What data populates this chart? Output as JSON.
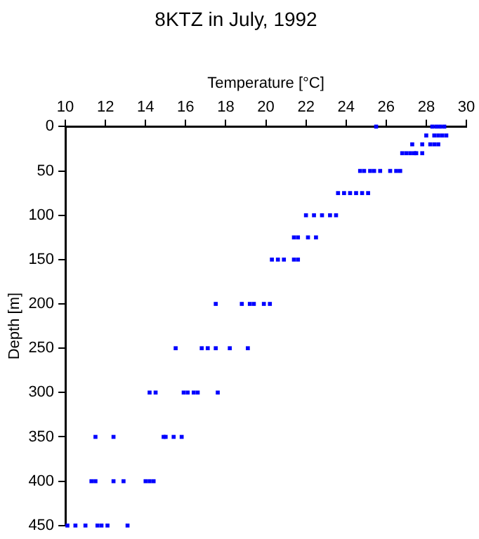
{
  "chart_data": {
    "type": "scatter",
    "title": "8KTZ in July, 1992",
    "xlabel": "Temperature [°C]",
    "ylabel": "Depth [m]",
    "x": [
      25.5,
      28.3,
      28.5,
      28.7,
      28.9,
      28.0,
      28.4,
      28.6,
      28.8,
      29.0,
      27.3,
      27.8,
      28.2,
      28.4,
      28.6,
      26.8,
      27.0,
      27.2,
      27.4,
      27.5,
      27.8,
      24.7,
      24.9,
      25.2,
      25.4,
      25.7,
      26.2,
      26.5,
      26.7,
      23.6,
      23.9,
      24.2,
      24.5,
      24.8,
      25.1,
      22.0,
      22.4,
      22.8,
      23.2,
      23.5,
      21.4,
      21.6,
      22.1,
      22.5,
      20.3,
      20.6,
      20.9,
      21.4,
      21.6,
      17.5,
      18.8,
      19.2,
      19.4,
      19.9,
      20.2,
      15.5,
      16.8,
      17.1,
      17.5,
      18.2,
      19.1,
      14.2,
      14.5,
      15.9,
      16.1,
      16.4,
      16.6,
      17.6,
      11.5,
      12.4,
      14.9,
      15.0,
      15.4,
      15.8,
      11.3,
      11.5,
      12.4,
      12.9,
      14.0,
      14.2,
      14.4,
      10.1,
      10.5,
      11.0,
      11.6,
      11.8,
      12.1,
      13.1
    ],
    "values": [
      0,
      0,
      0,
      0,
      0,
      10,
      10,
      10,
      10,
      10,
      20,
      20,
      20,
      20,
      20,
      30,
      30,
      30,
      30,
      30,
      30,
      50,
      50,
      50,
      50,
      50,
      50,
      50,
      50,
      75,
      75,
      75,
      75,
      75,
      75,
      100,
      100,
      100,
      100,
      100,
      125,
      125,
      125,
      125,
      150,
      150,
      150,
      150,
      150,
      200,
      200,
      200,
      200,
      200,
      200,
      250,
      250,
      250,
      250,
      250,
      250,
      300,
      300,
      300,
      300,
      300,
      300,
      300,
      350,
      350,
      350,
      350,
      350,
      350,
      400,
      400,
      400,
      400,
      400,
      400,
      400,
      450,
      450,
      450,
      450,
      450,
      450,
      450
    ],
    "color": "#0000ff",
    "marker": "square",
    "xlim": [
      10,
      30
    ],
    "xticks": [
      10,
      12,
      14,
      16,
      18,
      20,
      22,
      24,
      26,
      28,
      30
    ],
    "ylim": [
      450,
      0
    ],
    "yticks": [
      0,
      50,
      100,
      150,
      200,
      250,
      300,
      350,
      400,
      450
    ],
    "grid": false,
    "legend": false
  }
}
